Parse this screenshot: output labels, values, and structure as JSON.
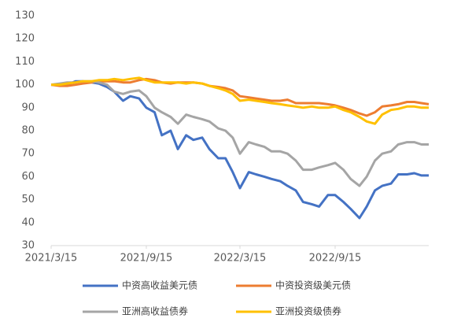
{
  "chart_data": {
    "type": "line",
    "x": [
      "2021/3/15",
      "2021/4/1",
      "2021/4/15",
      "2021/5/1",
      "2021/5/15",
      "2021/6/1",
      "2021/6/15",
      "2021/7/1",
      "2021/7/15",
      "2021/8/1",
      "2021/8/15",
      "2021/9/1",
      "2021/9/15",
      "2021/10/1",
      "2021/10/15",
      "2021/11/1",
      "2021/11/15",
      "2021/12/1",
      "2021/12/15",
      "2022/1/1",
      "2022/1/15",
      "2022/2/1",
      "2022/2/15",
      "2022/3/1",
      "2022/3/15",
      "2022/4/1",
      "2022/4/15",
      "2022/5/1",
      "2022/5/15",
      "2022/6/1",
      "2022/6/15",
      "2022/7/1",
      "2022/7/15",
      "2022/8/1",
      "2022/8/15",
      "2022/9/1",
      "2022/9/15",
      "2022/10/1",
      "2022/10/15",
      "2022/11/1",
      "2022/11/15",
      "2022/12/1",
      "2022/12/15",
      "2023/1/1",
      "2023/1/15",
      "2023/2/1",
      "2023/2/15",
      "2023/3/1",
      "2023/3/15"
    ],
    "series": [
      {
        "name": "中资高收益美元债",
        "color": "#4472c4",
        "values": [
          100,
          100,
          100,
          101.5,
          101.5,
          101,
          100.5,
          99,
          97,
          93,
          95,
          94,
          90,
          88,
          78,
          80,
          72,
          78,
          76,
          77,
          72,
          68,
          68,
          62,
          55,
          62,
          61,
          60,
          59,
          58,
          56,
          54,
          49,
          48,
          47,
          52,
          52,
          49,
          46,
          42,
          47,
          54,
          56,
          57,
          61,
          61,
          61.5,
          60.5,
          60.5
        ]
      },
      {
        "name": "中资投资级美元债",
        "color": "#ed7d31",
        "values": [
          100,
          99.5,
          99.5,
          100,
          100.5,
          101,
          101.5,
          101.5,
          101.5,
          101,
          101,
          102,
          102.5,
          102,
          101,
          100.5,
          101,
          101,
          101,
          100.5,
          99.5,
          99,
          98.5,
          97.5,
          95,
          94.5,
          94,
          93.5,
          93,
          93,
          93.5,
          92,
          92,
          92,
          92,
          91.5,
          91,
          90,
          89,
          87.5,
          86.5,
          88,
          90.5,
          91,
          91.5,
          92.5,
          92.5,
          92,
          91.5
        ]
      },
      {
        "name": "亚洲高收益债券",
        "color": "#a5a5a5",
        "values": [
          100,
          100.5,
          101,
          101,
          101.5,
          101.5,
          101,
          100,
          97,
          96,
          97,
          97.5,
          95,
          90,
          88,
          86,
          83,
          87,
          86,
          85,
          84,
          81,
          80,
          77,
          70,
          75,
          74,
          73,
          71,
          71,
          70,
          67,
          63,
          63,
          64,
          65,
          66,
          63,
          59,
          56,
          60,
          67,
          70,
          71,
          74,
          75,
          75,
          74,
          74
        ]
      },
      {
        "name": "亚洲投资级债券",
        "color": "#ffc000",
        "values": [
          100,
          100,
          100.5,
          101,
          101.5,
          101.5,
          102,
          102,
          102.5,
          102,
          102.5,
          103,
          102,
          101,
          101,
          101,
          101,
          100.5,
          101,
          100.5,
          99.5,
          98.5,
          97.5,
          96,
          93,
          93.5,
          93,
          92.5,
          92,
          91.5,
          91,
          90.5,
          90,
          90.5,
          90,
          90,
          90.5,
          89,
          88,
          86,
          84,
          83,
          87,
          89,
          89.5,
          90.5,
          90.5,
          90,
          90
        ]
      }
    ],
    "xlim": [
      "2021/3/15",
      "2023/3/15"
    ],
    "xticks": [
      "2021/3/15",
      "2021/9/15",
      "2022/3/15",
      "2022/9/15"
    ],
    "ylim": [
      30,
      130
    ],
    "yticks": [
      30,
      40,
      50,
      60,
      70,
      80,
      90,
      100,
      110,
      120,
      130
    ],
    "grid": false,
    "legend": "bottom"
  }
}
